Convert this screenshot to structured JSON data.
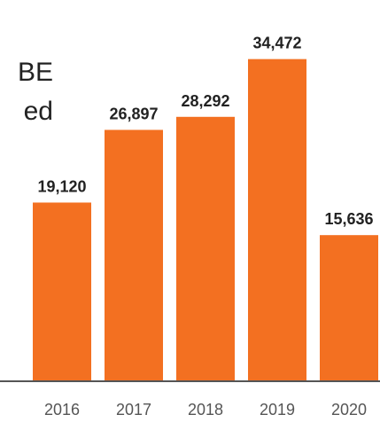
{
  "intro_text": {
    "line1": "BE",
    "line2": "ed"
  },
  "chart_data": {
    "type": "bar",
    "categories": [
      "2016",
      "2017",
      "2018",
      "2019",
      "2020"
    ],
    "values": [
      19120,
      26897,
      28292,
      34472,
      15636
    ],
    "value_labels": [
      "19,120",
      "26,897",
      "28,292",
      "34,472",
      "15,636"
    ],
    "ylim": [
      0,
      37000
    ],
    "grid": false,
    "bar_color": "#f37021",
    "axis_color": "#555555"
  }
}
